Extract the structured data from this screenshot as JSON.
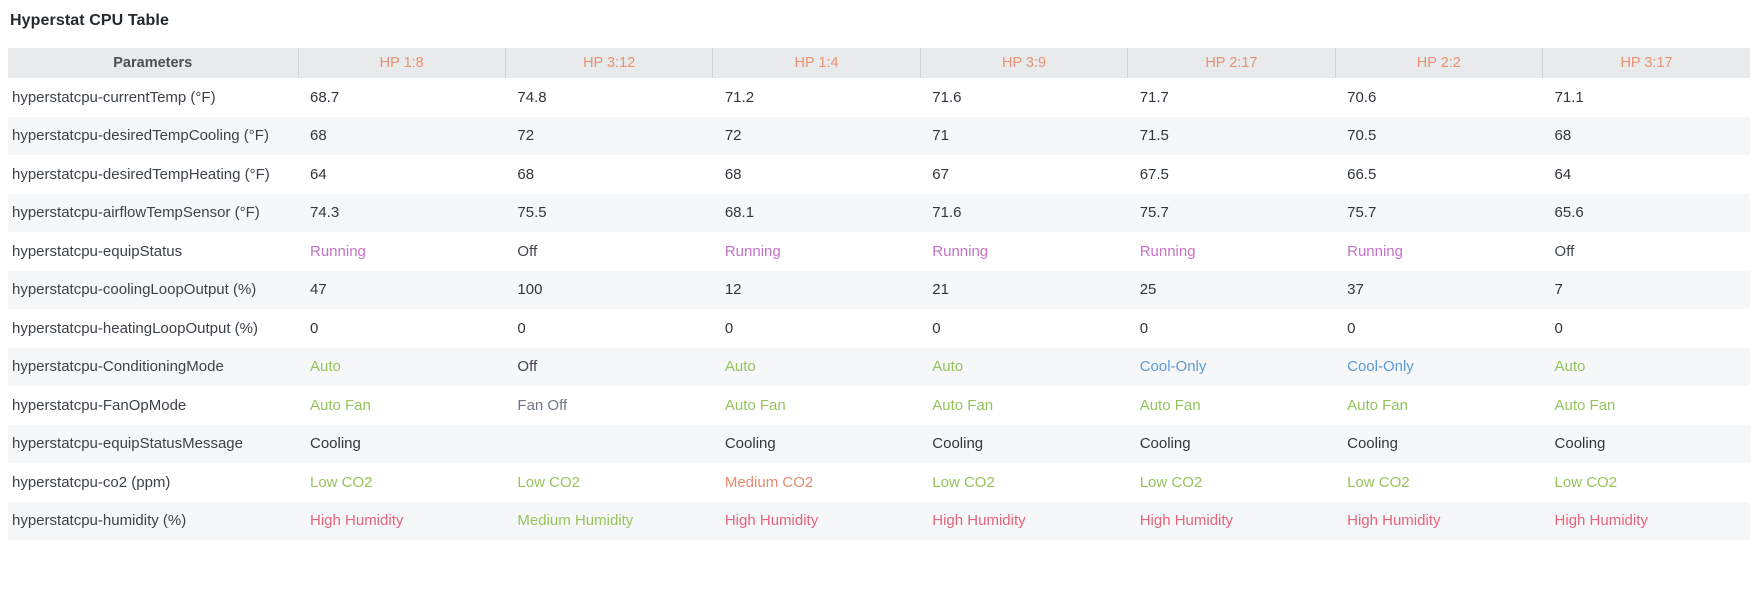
{
  "page": {
    "title": "Hyperstat CPU Table"
  },
  "colors": {
    "header_bg": "#e8eaeb",
    "header_device": "#e89173",
    "header_param": "#4b5055",
    "stripe": "#f6f7f8",
    "text": "#31363c",
    "green": "#97c35c",
    "purple": "#c473c4",
    "blue": "#5b9bd5",
    "orange": "#e88a6e",
    "red": "#e5637c",
    "gray": "#6f7888",
    "dark": "#3d4450"
  },
  "table": {
    "param_header": "Parameters",
    "columns": [
      "HP 1:8",
      "HP 3:12",
      "HP 1:4",
      "HP 3:9",
      "HP 2:17",
      "HP 2:2",
      "HP 3:17"
    ],
    "rows": [
      {
        "param": "hyperstatcpu-currentTemp (°F)",
        "cells": [
          {
            "text": "68.7",
            "color": "text"
          },
          {
            "text": "74.8",
            "color": "text"
          },
          {
            "text": "71.2",
            "color": "text"
          },
          {
            "text": "71.6",
            "color": "text"
          },
          {
            "text": "71.7",
            "color": "text"
          },
          {
            "text": "70.6",
            "color": "text"
          },
          {
            "text": "71.1",
            "color": "text"
          }
        ]
      },
      {
        "param": "hyperstatcpu-desiredTempCooling (°F)",
        "cells": [
          {
            "text": "68",
            "color": "text"
          },
          {
            "text": "72",
            "color": "text"
          },
          {
            "text": "72",
            "color": "text"
          },
          {
            "text": "71",
            "color": "text"
          },
          {
            "text": "71.5",
            "color": "text"
          },
          {
            "text": "70.5",
            "color": "text"
          },
          {
            "text": "68",
            "color": "text"
          }
        ]
      },
      {
        "param": "hyperstatcpu-desiredTempHeating (°F)",
        "cells": [
          {
            "text": "64",
            "color": "text"
          },
          {
            "text": "68",
            "color": "text"
          },
          {
            "text": "68",
            "color": "text"
          },
          {
            "text": "67",
            "color": "text"
          },
          {
            "text": "67.5",
            "color": "text"
          },
          {
            "text": "66.5",
            "color": "text"
          },
          {
            "text": "64",
            "color": "text"
          }
        ]
      },
      {
        "param": "hyperstatcpu-airflowTempSensor (°F)",
        "cells": [
          {
            "text": "74.3",
            "color": "text"
          },
          {
            "text": "75.5",
            "color": "text"
          },
          {
            "text": "68.1",
            "color": "text"
          },
          {
            "text": "71.6",
            "color": "text"
          },
          {
            "text": "75.7",
            "color": "text"
          },
          {
            "text": "75.7",
            "color": "text"
          },
          {
            "text": "65.6",
            "color": "text"
          }
        ]
      },
      {
        "param": "hyperstatcpu-equipStatus",
        "cells": [
          {
            "text": "Running",
            "color": "purple"
          },
          {
            "text": "Off",
            "color": "dark"
          },
          {
            "text": "Running",
            "color": "purple"
          },
          {
            "text": "Running",
            "color": "purple"
          },
          {
            "text": "Running",
            "color": "purple"
          },
          {
            "text": "Running",
            "color": "purple"
          },
          {
            "text": "Off",
            "color": "dark"
          }
        ]
      },
      {
        "param": "hyperstatcpu-coolingLoopOutput (%)",
        "cells": [
          {
            "text": "47",
            "color": "text"
          },
          {
            "text": "100",
            "color": "text"
          },
          {
            "text": "12",
            "color": "text"
          },
          {
            "text": "21",
            "color": "text"
          },
          {
            "text": "25",
            "color": "text"
          },
          {
            "text": "37",
            "color": "text"
          },
          {
            "text": "7",
            "color": "text"
          }
        ]
      },
      {
        "param": "hyperstatcpu-heatingLoopOutput (%)",
        "cells": [
          {
            "text": "0",
            "color": "text"
          },
          {
            "text": "0",
            "color": "text"
          },
          {
            "text": "0",
            "color": "text"
          },
          {
            "text": "0",
            "color": "text"
          },
          {
            "text": "0",
            "color": "text"
          },
          {
            "text": "0",
            "color": "text"
          },
          {
            "text": "0",
            "color": "text"
          }
        ]
      },
      {
        "param": "hyperstatcpu-ConditioningMode",
        "cells": [
          {
            "text": "Auto",
            "color": "green"
          },
          {
            "text": "Off",
            "color": "dark"
          },
          {
            "text": "Auto",
            "color": "green"
          },
          {
            "text": "Auto",
            "color": "green"
          },
          {
            "text": "Cool-Only",
            "color": "blue"
          },
          {
            "text": "Cool-Only",
            "color": "blue"
          },
          {
            "text": "Auto",
            "color": "green"
          }
        ]
      },
      {
        "param": "hyperstatcpu-FanOpMode",
        "cells": [
          {
            "text": "Auto Fan",
            "color": "green"
          },
          {
            "text": "Fan Off",
            "color": "gray"
          },
          {
            "text": "Auto Fan",
            "color": "green"
          },
          {
            "text": "Auto Fan",
            "color": "green"
          },
          {
            "text": "Auto Fan",
            "color": "green"
          },
          {
            "text": "Auto Fan",
            "color": "green"
          },
          {
            "text": "Auto Fan",
            "color": "green"
          }
        ]
      },
      {
        "param": "hyperstatcpu-equipStatusMessage",
        "cells": [
          {
            "text": "Cooling",
            "color": "text"
          },
          {
            "text": "",
            "color": "text"
          },
          {
            "text": "Cooling",
            "color": "text"
          },
          {
            "text": "Cooling",
            "color": "text"
          },
          {
            "text": "Cooling",
            "color": "text"
          },
          {
            "text": "Cooling",
            "color": "text"
          },
          {
            "text": "Cooling",
            "color": "text"
          }
        ]
      },
      {
        "param": "hyperstatcpu-co2 (ppm)",
        "cells": [
          {
            "text": "Low CO2",
            "color": "green"
          },
          {
            "text": "Low CO2",
            "color": "green"
          },
          {
            "text": "Medium CO2",
            "color": "orange"
          },
          {
            "text": "Low CO2",
            "color": "green"
          },
          {
            "text": "Low CO2",
            "color": "green"
          },
          {
            "text": "Low CO2",
            "color": "green"
          },
          {
            "text": "Low CO2",
            "color": "green"
          }
        ]
      },
      {
        "param": "hyperstatcpu-humidity (%)",
        "cells": [
          {
            "text": "High Humidity",
            "color": "red"
          },
          {
            "text": "Medium Humidity",
            "color": "green"
          },
          {
            "text": "High Humidity",
            "color": "red"
          },
          {
            "text": "High Humidity",
            "color": "red"
          },
          {
            "text": "High Humidity",
            "color": "red"
          },
          {
            "text": "High Humidity",
            "color": "red"
          },
          {
            "text": "High Humidity",
            "color": "red"
          }
        ]
      }
    ]
  }
}
